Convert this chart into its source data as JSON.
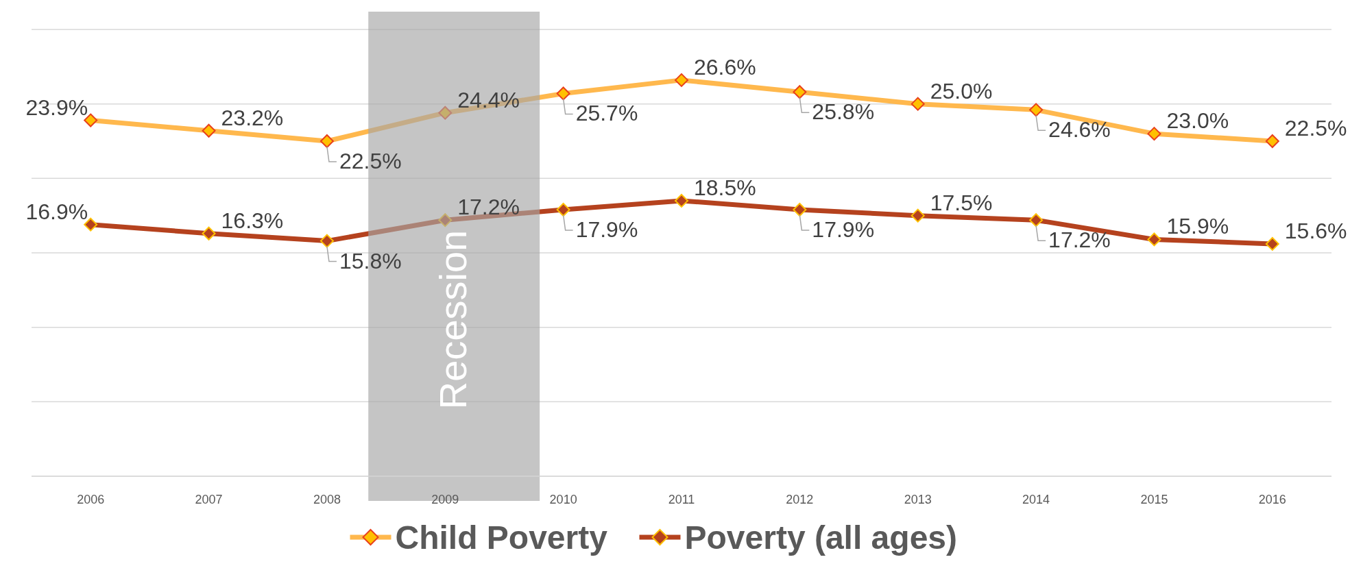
{
  "chart_data": {
    "type": "line",
    "x": [
      2006,
      2007,
      2008,
      2009,
      2010,
      2011,
      2012,
      2013,
      2014,
      2015,
      2016
    ],
    "xlim": [
      2005.5,
      2016.5
    ],
    "xticks": [
      2006,
      2007,
      2008,
      2009,
      2010,
      2011,
      2012,
      2013,
      2014,
      2015,
      2016
    ],
    "ylim": [
      0,
      30
    ],
    "yticks": [
      {
        "value": 0,
        "label": null
      },
      {
        "value": 5,
        "label": null
      },
      {
        "value": 10,
        "label": null
      },
      {
        "value": 15,
        "label": null
      },
      {
        "value": 20,
        "label": null
      },
      {
        "value": 25,
        "label": null
      },
      {
        "value": 30,
        "label": null
      }
    ],
    "tick_labels": "x",
    "grid": "y",
    "legend": "bottom",
    "marker": "diamond",
    "line_style": "solid",
    "series": [
      {
        "name": "Child Poverty",
        "color": "#ffb84d",
        "values": [
          23.9,
          23.2,
          22.5,
          24.4,
          25.7,
          26.6,
          25.8,
          25.0,
          24.6,
          23.0,
          22.5
        ],
        "value_labels": [
          "23.9%",
          "23.2%",
          "22.5%",
          "24.4%",
          "25.7%",
          "26.6%",
          "25.8%",
          "25.0%",
          "24.6%",
          "23.0%",
          "22.5%"
        ]
      },
      {
        "name": "Poverty (all ages)",
        "color": "#b5421e",
        "values": [
          16.9,
          16.3,
          15.8,
          17.2,
          17.9,
          18.5,
          17.9,
          17.5,
          17.2,
          15.9,
          15.6
        ],
        "value_labels": [
          "16.9%",
          "16.3%",
          "15.8%",
          "17.2%",
          "17.9%",
          "18.5%",
          "17.9%",
          "17.5%",
          "17.2%",
          "15.9%",
          "15.6%"
        ]
      }
    ],
    "bands": [
      {
        "axis": "x",
        "from": 2008.35,
        "to": 2009.8,
        "label": "Recession",
        "color": "#a6a6a6"
      }
    ]
  }
}
